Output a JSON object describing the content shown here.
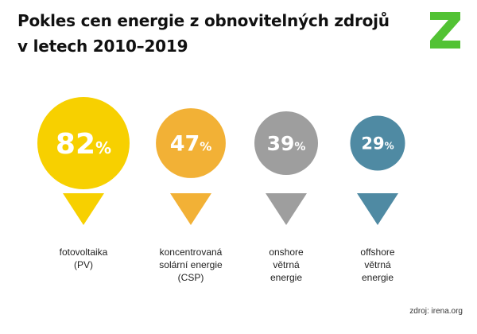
{
  "title_line1": "Pokles cen energie z obnovitelných zdrojů",
  "title_line2": "v letech 2010–2019",
  "logo": {
    "letter": "Z",
    "icon": "z-logo-icon",
    "color": "#52c234"
  },
  "source": "zdroj: irena.org",
  "chart_data": {
    "type": "bubble",
    "unit": "%",
    "categories": [
      [
        "fotovoltaika",
        "(PV)"
      ],
      [
        "koncentrovaná",
        "solární energie",
        "(CSP)"
      ],
      [
        "onshore",
        "větrná",
        "energie"
      ],
      [
        "offshore",
        "větrná",
        "energie"
      ]
    ],
    "values": [
      82,
      47,
      39,
      29
    ],
    "colors": [
      "#f7d000",
      "#f2b136",
      "#9e9e9e",
      "#4f8aa3"
    ]
  }
}
